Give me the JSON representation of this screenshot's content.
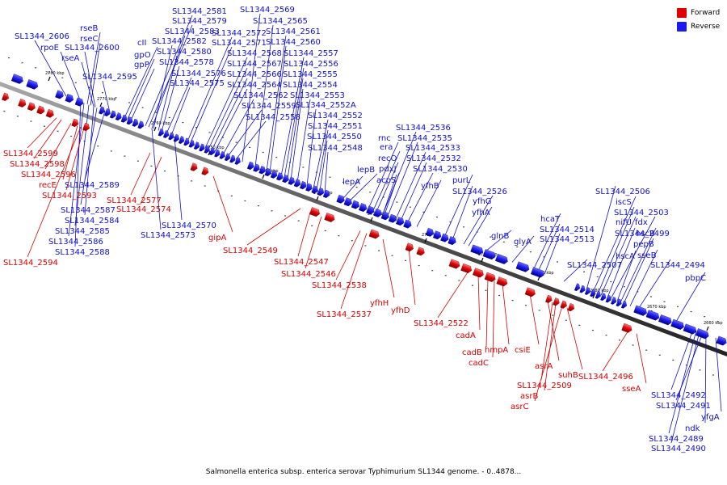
{
  "caption": "Salmonella enterica subsp. enterica serovar Typhimurium SL1344 genome. - 0..4878...",
  "legend": [
    {
      "label": "Forward",
      "color": "#e00000"
    },
    {
      "label": "Reverse",
      "color": "#1a1aee"
    }
  ],
  "ticks": [
    "2780 kbp",
    "2770 kbp",
    "2760 kbp",
    "2750 kbp",
    "2740 kbp",
    "2730 kbp",
    "2720 kbp",
    "2710 kbp",
    "2700 kbp",
    "2690 kbp",
    "2680 kbp",
    "2670 kbp",
    "2660 kbp"
  ],
  "reverse_labels": [
    "SL1344_2606",
    "rpoE",
    "rseB",
    "rseC",
    "rseA",
    "SL1344_2600",
    "SL1344_2595",
    "cII",
    "gpO",
    "gpP",
    "SL1344_2581",
    "SL1344_2579",
    "SL1344_2583",
    "SL1344_2582",
    "SL1344_2580",
    "SL1344_2578",
    "SL1344_2576",
    "SL1344_2575",
    "SL1344_2569",
    "SL1344_2565",
    "SL1344_2572",
    "SL1344_2561",
    "SL1344_2571",
    "SL1344_2560",
    "SL1344_2568",
    "SL1344_2557",
    "SL1344_2567",
    "SL1344_2556",
    "SL1344_2566",
    "SL1344_2555",
    "SL1344_2564",
    "SL1344_2554",
    "SL1344_2562",
    "SL1344_2553",
    "SL1344_2559",
    "SL1344_2552A",
    "SL1344_2558",
    "SL1344_2552",
    "SL1344_2551",
    "SL1344_2550",
    "SL1344_2548",
    "SL1344_2536",
    "rnc",
    "SL1344_2535",
    "era",
    "SL1344_2533",
    "recO",
    "SL1344_2532",
    "lepB",
    "pdxJ",
    "SL1344_2530",
    "acpS",
    "lepA",
    "yfhB",
    "purL",
    "SL1344_2526",
    "yfhG",
    "yfhA",
    "glnB",
    "glyA",
    "hcaT",
    "SL1344_2514",
    "SL1344_2513",
    "SL1344_2507",
    "SL1344_2506",
    "iscS",
    "SL1344_2503",
    "nifU",
    "fdx",
    "SL1344_2499",
    "hscB",
    "pepB",
    "hscA",
    "sseB",
    "SL1344_2494",
    "pbpC",
    "SL1344_2589",
    "SL1344_2587",
    "SL1344_2584",
    "SL1344_2585",
    "SL1344_2586",
    "SL1344_2588",
    "SL1344_2573",
    "SL1344_2570",
    "SL1344_2492",
    "SL1344_2491",
    "yfgA",
    "ndk",
    "SL1344_2489",
    "SL1344_2490"
  ],
  "forward_labels": [
    "SL1344_2599",
    "SL1344_2598",
    "SL1344_2596",
    "recE",
    "SL1344_2593",
    "SL1344_2594",
    "SL1344_2577",
    "SL1344_2574",
    "gipA",
    "SL1344_2549",
    "SL1344_2547",
    "SL1344_2546",
    "SL1344_2538",
    "SL1344_2537",
    "yfhH",
    "yfhD",
    "SL1344_2522",
    "cadA",
    "cadB",
    "cadC",
    "hmpA",
    "csiE",
    "asrA",
    "SL1344_2509",
    "asrB",
    "asrC",
    "suhB",
    "SL1344_2496",
    "sseA"
  ]
}
